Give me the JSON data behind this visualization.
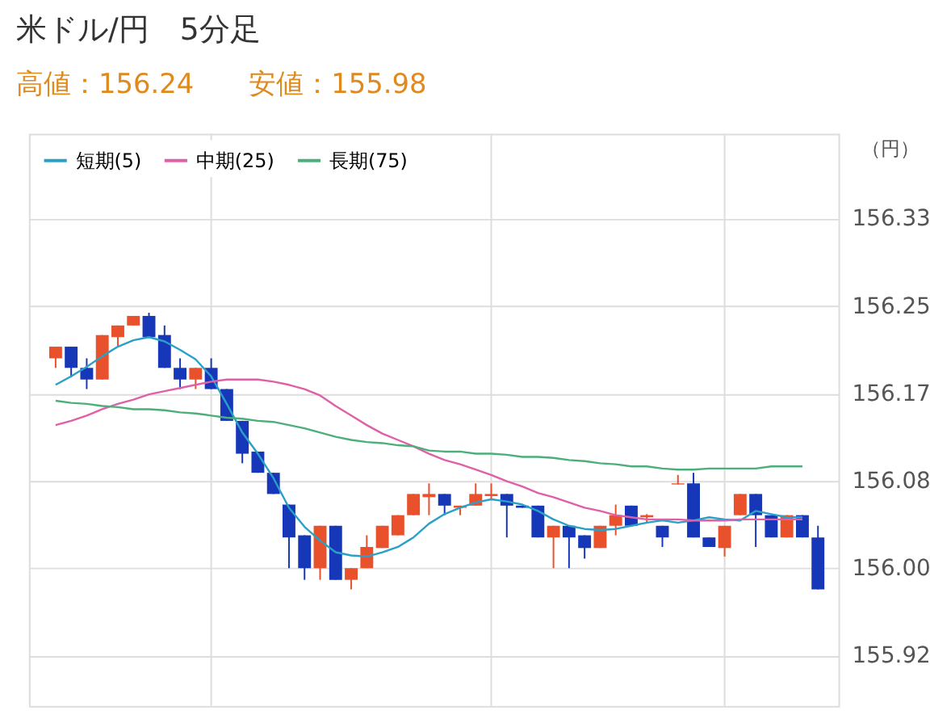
{
  "chart_data": {
    "type": "candlestick",
    "title": "米ドル/円　5分足",
    "annotations": [
      "高値：156.24",
      "安値：155.98"
    ],
    "ylabel": "（円）",
    "categories": [
      null,
      null,
      null,
      null,
      null,
      null,
      null,
      null,
      null,
      null,
      null,
      null,
      null,
      null,
      null,
      null,
      null,
      null,
      null,
      null,
      null,
      null,
      null,
      null,
      null,
      null,
      null,
      null,
      null,
      null,
      null,
      null,
      null,
      null,
      null,
      null,
      null,
      null,
      null,
      null,
      null,
      null,
      null,
      null,
      null,
      null,
      null,
      null,
      null,
      null
    ],
    "ohlc": [
      [
        156.198,
        156.209,
        156.189,
        156.209
      ],
      [
        156.209,
        156.209,
        156.18,
        156.189
      ],
      [
        156.189,
        156.198,
        156.169,
        156.178
      ],
      [
        156.178,
        156.22,
        156.178,
        156.22
      ],
      [
        156.218,
        156.229,
        156.209,
        156.229
      ],
      [
        156.229,
        156.238,
        156.229,
        156.238
      ],
      [
        156.238,
        156.241,
        156.218,
        156.218
      ],
      [
        156.22,
        156.229,
        156.189,
        156.189
      ],
      [
        156.189,
        156.198,
        156.169,
        156.178
      ],
      [
        156.178,
        156.189,
        156.169,
        156.189
      ],
      [
        156.189,
        156.198,
        156.169,
        156.169
      ],
      [
        156.169,
        156.169,
        156.139,
        156.139
      ],
      [
        156.139,
        156.139,
        156.099,
        156.108
      ],
      [
        156.11,
        156.11,
        156.09,
        156.09
      ],
      [
        156.09,
        156.09,
        156.07,
        156.07
      ],
      [
        156.06,
        156.06,
        156.0,
        156.029
      ],
      [
        156.031,
        156.031,
        155.989,
        156.0
      ],
      [
        156.0,
        156.04,
        155.989,
        156.04
      ],
      [
        156.04,
        156.04,
        155.989,
        155.989
      ],
      [
        155.989,
        156.0,
        155.98,
        156.0
      ],
      [
        156.0,
        156.031,
        156.0,
        156.02
      ],
      [
        156.019,
        156.04,
        156.019,
        156.04
      ],
      [
        156.031,
        156.05,
        156.031,
        156.05
      ],
      [
        156.05,
        156.07,
        156.05,
        156.07
      ],
      [
        156.067,
        156.08,
        156.05,
        156.07
      ],
      [
        156.07,
        156.07,
        156.05,
        156.059
      ],
      [
        156.057,
        156.059,
        156.05,
        156.059
      ],
      [
        156.059,
        156.08,
        156.059,
        156.07
      ],
      [
        156.068,
        156.08,
        156.065,
        156.07
      ],
      [
        156.07,
        156.07,
        156.029,
        156.059
      ],
      [
        156.059,
        156.059,
        156.057,
        156.057
      ],
      [
        156.059,
        156.059,
        156.029,
        156.029
      ],
      [
        156.029,
        156.04,
        156.0,
        156.04
      ],
      [
        156.04,
        156.04,
        156.0,
        156.029
      ],
      [
        156.031,
        156.031,
        156.009,
        156.019
      ],
      [
        156.019,
        156.04,
        156.019,
        156.04
      ],
      [
        156.04,
        156.06,
        156.031,
        156.05
      ],
      [
        156.059,
        156.059,
        156.04,
        156.04
      ],
      [
        156.048,
        156.051,
        156.042,
        156.05
      ],
      [
        156.04,
        156.04,
        156.02,
        156.029
      ],
      [
        156.079,
        156.088,
        156.079,
        156.08
      ],
      [
        156.08,
        156.09,
        156.029,
        156.029
      ],
      [
        156.029,
        156.029,
        156.02,
        156.02
      ],
      [
        156.019,
        156.04,
        156.011,
        156.04
      ],
      [
        156.05,
        156.07,
        156.05,
        156.07
      ],
      [
        156.07,
        156.07,
        156.02,
        156.05
      ],
      [
        156.05,
        156.05,
        156.029,
        156.029
      ],
      [
        156.029,
        156.05,
        156.029,
        156.05
      ],
      [
        156.05,
        156.05,
        156.029,
        156.029
      ],
      [
        156.029,
        156.04,
        155.98,
        155.98
      ]
    ],
    "colors": [
      "#e8512b",
      "#1638b8",
      "#1638b8",
      "#e8512b",
      "#e8512b",
      "#e8512b",
      "#1638b8",
      "#1638b8",
      "#1638b8",
      "#e8512b",
      "#1638b8",
      "#1638b8",
      "#1638b8",
      "#1638b8",
      "#1638b8",
      "#1638b8",
      "#1638b8",
      "#e8512b",
      "#1638b8",
      "#e8512b",
      "#e8512b",
      "#e8512b",
      "#e8512b",
      "#e8512b",
      "#e8512b",
      "#1638b8",
      "#e8512b",
      "#e8512b",
      "#e8512b",
      "#1638b8",
      "#1638b8",
      "#1638b8",
      "#e8512b",
      "#1638b8",
      "#1638b8",
      "#e8512b",
      "#e8512b",
      "#1638b8",
      "#e8512b",
      "#1638b8",
      "#e8512b",
      "#1638b8",
      "#1638b8",
      "#e8512b",
      "#e8512b",
      "#1638b8",
      "#1638b8",
      "#e8512b",
      "#1638b8",
      "#1638b8"
    ],
    "series": [
      {
        "name": "短期(5)",
        "type": "line",
        "color": "#2aa0c8",
        "values": [
          156.173,
          156.181,
          156.19,
          156.2,
          156.209,
          156.215,
          156.218,
          156.214,
          156.206,
          156.197,
          156.181,
          156.155,
          156.128,
          156.108,
          156.085,
          156.057,
          156.039,
          156.026,
          156.015,
          156.012,
          156.011,
          156.015,
          156.02,
          156.029,
          156.042,
          156.051,
          156.057,
          156.062,
          156.065,
          156.063,
          156.06,
          156.054,
          156.046,
          156.04,
          156.037,
          156.036,
          156.037,
          156.04,
          156.043,
          156.045,
          156.043,
          156.045,
          156.048,
          156.046,
          156.045,
          156.054,
          156.051,
          156.048,
          156.048,
          null
        ]
      },
      {
        "name": "中期(25)",
        "type": "line",
        "color": "#e060a8",
        "values": [
          156.135,
          156.139,
          156.144,
          156.15,
          156.155,
          156.159,
          156.164,
          156.167,
          156.17,
          156.173,
          156.176,
          156.178,
          156.178,
          156.178,
          156.176,
          156.173,
          156.169,
          156.163,
          156.153,
          156.144,
          156.135,
          156.127,
          156.121,
          156.115,
          156.108,
          156.102,
          156.098,
          156.093,
          156.088,
          156.082,
          156.077,
          156.071,
          156.067,
          156.062,
          156.057,
          156.054,
          156.05,
          156.048,
          156.046,
          156.046,
          156.046,
          156.045,
          156.045,
          156.045,
          156.046,
          156.046,
          156.046,
          156.046,
          156.046,
          null
        ]
      },
      {
        "name": "長期(75)",
        "type": "line",
        "color": "#4caf7a",
        "values": [
          156.158,
          156.156,
          156.155,
          156.153,
          156.152,
          156.15,
          156.15,
          156.149,
          156.147,
          156.146,
          156.144,
          156.142,
          156.141,
          156.139,
          156.138,
          156.135,
          156.132,
          156.128,
          156.124,
          156.121,
          156.119,
          156.118,
          156.116,
          156.115,
          156.111,
          156.11,
          156.11,
          156.108,
          156.108,
          156.107,
          156.105,
          156.105,
          156.104,
          156.102,
          156.101,
          156.099,
          156.098,
          156.096,
          156.096,
          156.094,
          156.093,
          156.093,
          156.094,
          156.094,
          156.094,
          156.094,
          156.096,
          156.096,
          156.096,
          null
        ]
      }
    ],
    "ylim": [
      155.87,
      156.41
    ],
    "yticks": [
      {
        "value": 155.9175,
        "label": "155.92"
      },
      {
        "value": 156.0,
        "label": "156.00"
      },
      {
        "value": 156.0825,
        "label": "156.08"
      },
      {
        "value": 156.165,
        "label": "156.17"
      },
      {
        "value": 156.2475,
        "label": "156.25"
      },
      {
        "value": 156.33,
        "label": "156.33"
      }
    ],
    "grid": true,
    "legend": "top left",
    "tick_labels": "y",
    "marker": "none",
    "line_style": "solid"
  }
}
